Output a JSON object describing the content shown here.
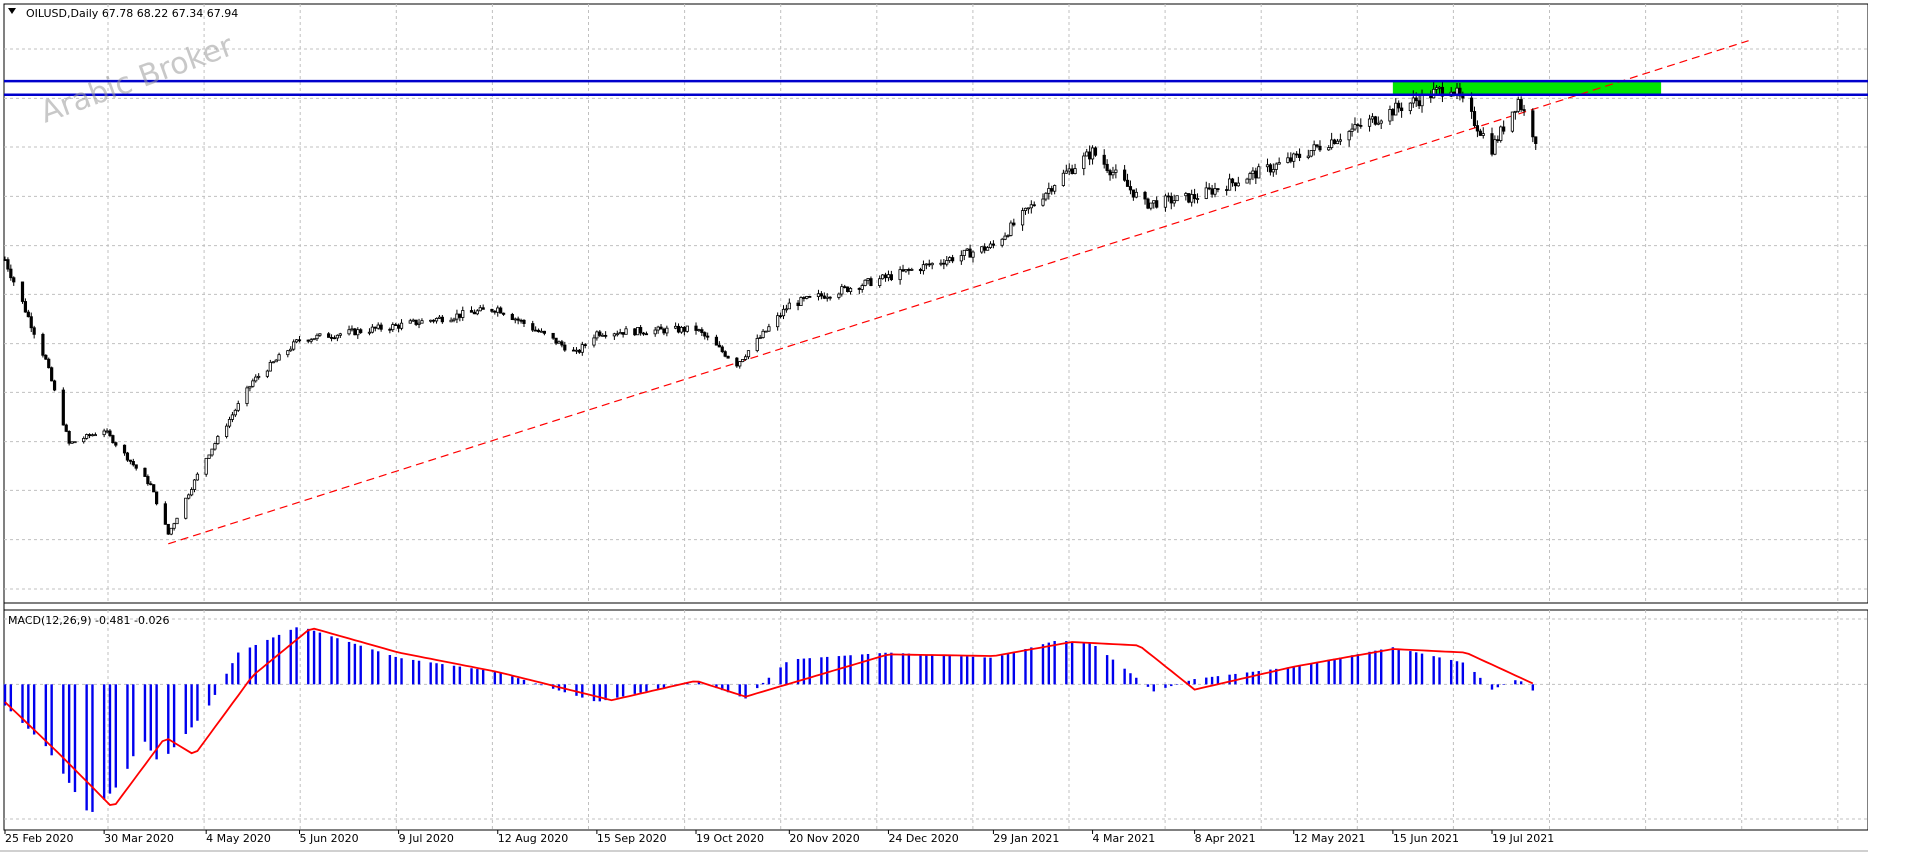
{
  "header": {
    "symbol_line": "OILUSD,Daily  67.78 68.22 67.34 67.94"
  },
  "watermark": "Arabic Broker",
  "macd_header": "MACD(12,26,9) -0.481 -0.026",
  "colors": {
    "candle": "#000000",
    "resistance_line": "#0000cc",
    "zone": "#00e600",
    "trendline": "#ff0000",
    "histogram": "#0000ee",
    "signal": "#ff0000",
    "grid": "#c0c0c0"
  },
  "chart_data": [
    {
      "type": "candlestick",
      "symbol": "OILUSD",
      "timeframe": "Daily",
      "last_ohlc": {
        "open": 67.78,
        "high": 68.22,
        "low": 67.34,
        "close": 67.94
      },
      "y_ticks": [
        "80.80",
        "73.70",
        "66.70",
        "59.60",
        "52.50",
        "45.50",
        "38.40",
        "31.40",
        "24.30",
        "17.30",
        "10.20",
        "3.10"
      ],
      "ylim": [
        0,
        85
      ],
      "x_ticks": [
        "25 Feb 2020",
        "30 Mar 2020",
        "4 May 2020",
        "5 Jun 2020",
        "9 Jul 2020",
        "12 Aug 2020",
        "15 Sep 2020",
        "19 Oct 2020",
        "20 Nov 2020",
        "24 Dec 2020",
        "29 Jan 2021",
        "4 Mar 2021",
        "8 Apr 2021",
        "12 May 2021",
        "15 Jun 2021",
        "19 Jul 2021"
      ],
      "price_path": [
        {
          "x": "25 Feb 2020",
          "y": 50.5
        },
        {
          "x": "10 Mar 2020",
          "y": 36
        },
        {
          "x": "18 Mar 2020",
          "y": 24
        },
        {
          "x": "30 Mar 2020",
          "y": 26
        },
        {
          "x": "15 Apr 2020",
          "y": 18
        },
        {
          "x": "21 Apr 2020",
          "y": 11
        },
        {
          "x": "4 May 2020",
          "y": 22
        },
        {
          "x": "20 May 2020",
          "y": 33
        },
        {
          "x": "5 Jun 2020",
          "y": 39
        },
        {
          "x": "9 Jul 2020",
          "y": 41
        },
        {
          "x": "12 Aug 2020",
          "y": 43.5
        },
        {
          "x": "8 Sep 2020",
          "y": 37
        },
        {
          "x": "15 Sep 2020",
          "y": 40
        },
        {
          "x": "19 Oct 2020",
          "y": 40.5
        },
        {
          "x": "2 Nov 2020",
          "y": 35.5
        },
        {
          "x": "20 Nov 2020",
          "y": 44
        },
        {
          "x": "24 Dec 2020",
          "y": 48
        },
        {
          "x": "29 Jan 2021",
          "y": 52.5
        },
        {
          "x": "20 Feb 2021",
          "y": 62
        },
        {
          "x": "4 Mar 2021",
          "y": 66
        },
        {
          "x": "22 Mar 2021",
          "y": 58.5
        },
        {
          "x": "8 Apr 2021",
          "y": 59.5
        },
        {
          "x": "12 May 2021",
          "y": 65
        },
        {
          "x": "15 Jun 2021",
          "y": 72
        },
        {
          "x": "5 Jul 2021",
          "y": 75.5
        },
        {
          "x": "19 Jul 2021",
          "y": 66.5
        },
        {
          "x": "28 Jul 2021",
          "y": 73.5
        },
        {
          "x": "3 Aug 2021",
          "y": 67.94
        }
      ],
      "horizontal_lines": [
        {
          "value": 76.18,
          "label": "76.18"
        },
        {
          "value": 74.21,
          "label": "74.21"
        }
      ],
      "current_price": {
        "value": 67.94,
        "label": "67.94"
      },
      "zone": {
        "from": 74.21,
        "to": 76.18,
        "x_start": "15 Jun 2021",
        "x_end": "15 Sep 2021"
      },
      "trendline": {
        "start": {
          "x": "21 Apr 2020",
          "y": 9.6
        },
        "end": {
          "x": "15 Oct 2021",
          "y": 82
        }
      }
    },
    {
      "type": "macd",
      "title": "MACD(12,26,9) -0.481 -0.026",
      "params": [
        12,
        26,
        9
      ],
      "main": -0.481,
      "signal": -0.026,
      "y_ticks": [
        "3.7",
        "0.00",
        "-7.627"
      ],
      "ylim": [
        -7.8,
        4.1
      ],
      "histogram_path": [
        {
          "x": "25 Feb 2020",
          "y": -1.2
        },
        {
          "x": "10 Mar 2020",
          "y": -3.5
        },
        {
          "x": "25 Mar 2020",
          "y": -7.4
        },
        {
          "x": "5 Apr 2020",
          "y": -5.5
        },
        {
          "x": "12 Apr 2020",
          "y": -3.0
        },
        {
          "x": "18 Apr 2020",
          "y": -4.5
        },
        {
          "x": "4 May 2020",
          "y": -1.5
        },
        {
          "x": "15 May 2020",
          "y": 1.8
        },
        {
          "x": "5 Jun 2020",
          "y": 3.3
        },
        {
          "x": "9 Jul 2020",
          "y": 1.5
        },
        {
          "x": "12 Aug 2020",
          "y": 0.7
        },
        {
          "x": "15 Sep 2020",
          "y": -1.0
        },
        {
          "x": "19 Oct 2020",
          "y": 0.2
        },
        {
          "x": "5 Nov 2020",
          "y": -0.8
        },
        {
          "x": "20 Nov 2020",
          "y": 1.4
        },
        {
          "x": "24 Dec 2020",
          "y": 1.8
        },
        {
          "x": "29 Jan 2021",
          "y": 1.5
        },
        {
          "x": "20 Feb 2021",
          "y": 2.5
        },
        {
          "x": "4 Mar 2021",
          "y": 2.3
        },
        {
          "x": "25 Mar 2021",
          "y": -0.4
        },
        {
          "x": "8 Apr 2021",
          "y": 0.3
        },
        {
          "x": "12 May 2021",
          "y": 1.0
        },
        {
          "x": "15 Jun 2021",
          "y": 2.1
        },
        {
          "x": "10 Jul 2021",
          "y": 1.2
        },
        {
          "x": "19 Jul 2021",
          "y": -0.3
        },
        {
          "x": "28 Jul 2021",
          "y": 0.3
        },
        {
          "x": "3 Aug 2021",
          "y": -0.481
        }
      ],
      "signal_path": [
        {
          "x": "25 Feb 2020",
          "y": -1.0
        },
        {
          "x": "15 Mar 2020",
          "y": -4.0
        },
        {
          "x": "2 Apr 2020",
          "y": -7.0
        },
        {
          "x": "20 Apr 2020",
          "y": -3.0
        },
        {
          "x": "30 Apr 2020",
          "y": -4.0
        },
        {
          "x": "20 May 2020",
          "y": 0.5
        },
        {
          "x": "9 Jun 2020",
          "y": 3.2
        },
        {
          "x": "9 Jul 2020",
          "y": 1.8
        },
        {
          "x": "12 Aug 2020",
          "y": 0.7
        },
        {
          "x": "20 Sep 2020",
          "y": -0.9
        },
        {
          "x": "19 Oct 2020",
          "y": 0.2
        },
        {
          "x": "5 Nov 2020",
          "y": -0.7
        },
        {
          "x": "24 Dec 2020",
          "y": 1.7
        },
        {
          "x": "29 Jan 2021",
          "y": 1.6
        },
        {
          "x": "25 Feb 2021",
          "y": 2.4
        },
        {
          "x": "20 Mar 2021",
          "y": 2.2
        },
        {
          "x": "8 Apr 2021",
          "y": -0.3
        },
        {
          "x": "12 May 2021",
          "y": 1.0
        },
        {
          "x": "15 Jun 2021",
          "y": 2.0
        },
        {
          "x": "10 Jul 2021",
          "y": 1.8
        },
        {
          "x": "3 Aug 2021",
          "y": -0.026
        }
      ]
    }
  ]
}
